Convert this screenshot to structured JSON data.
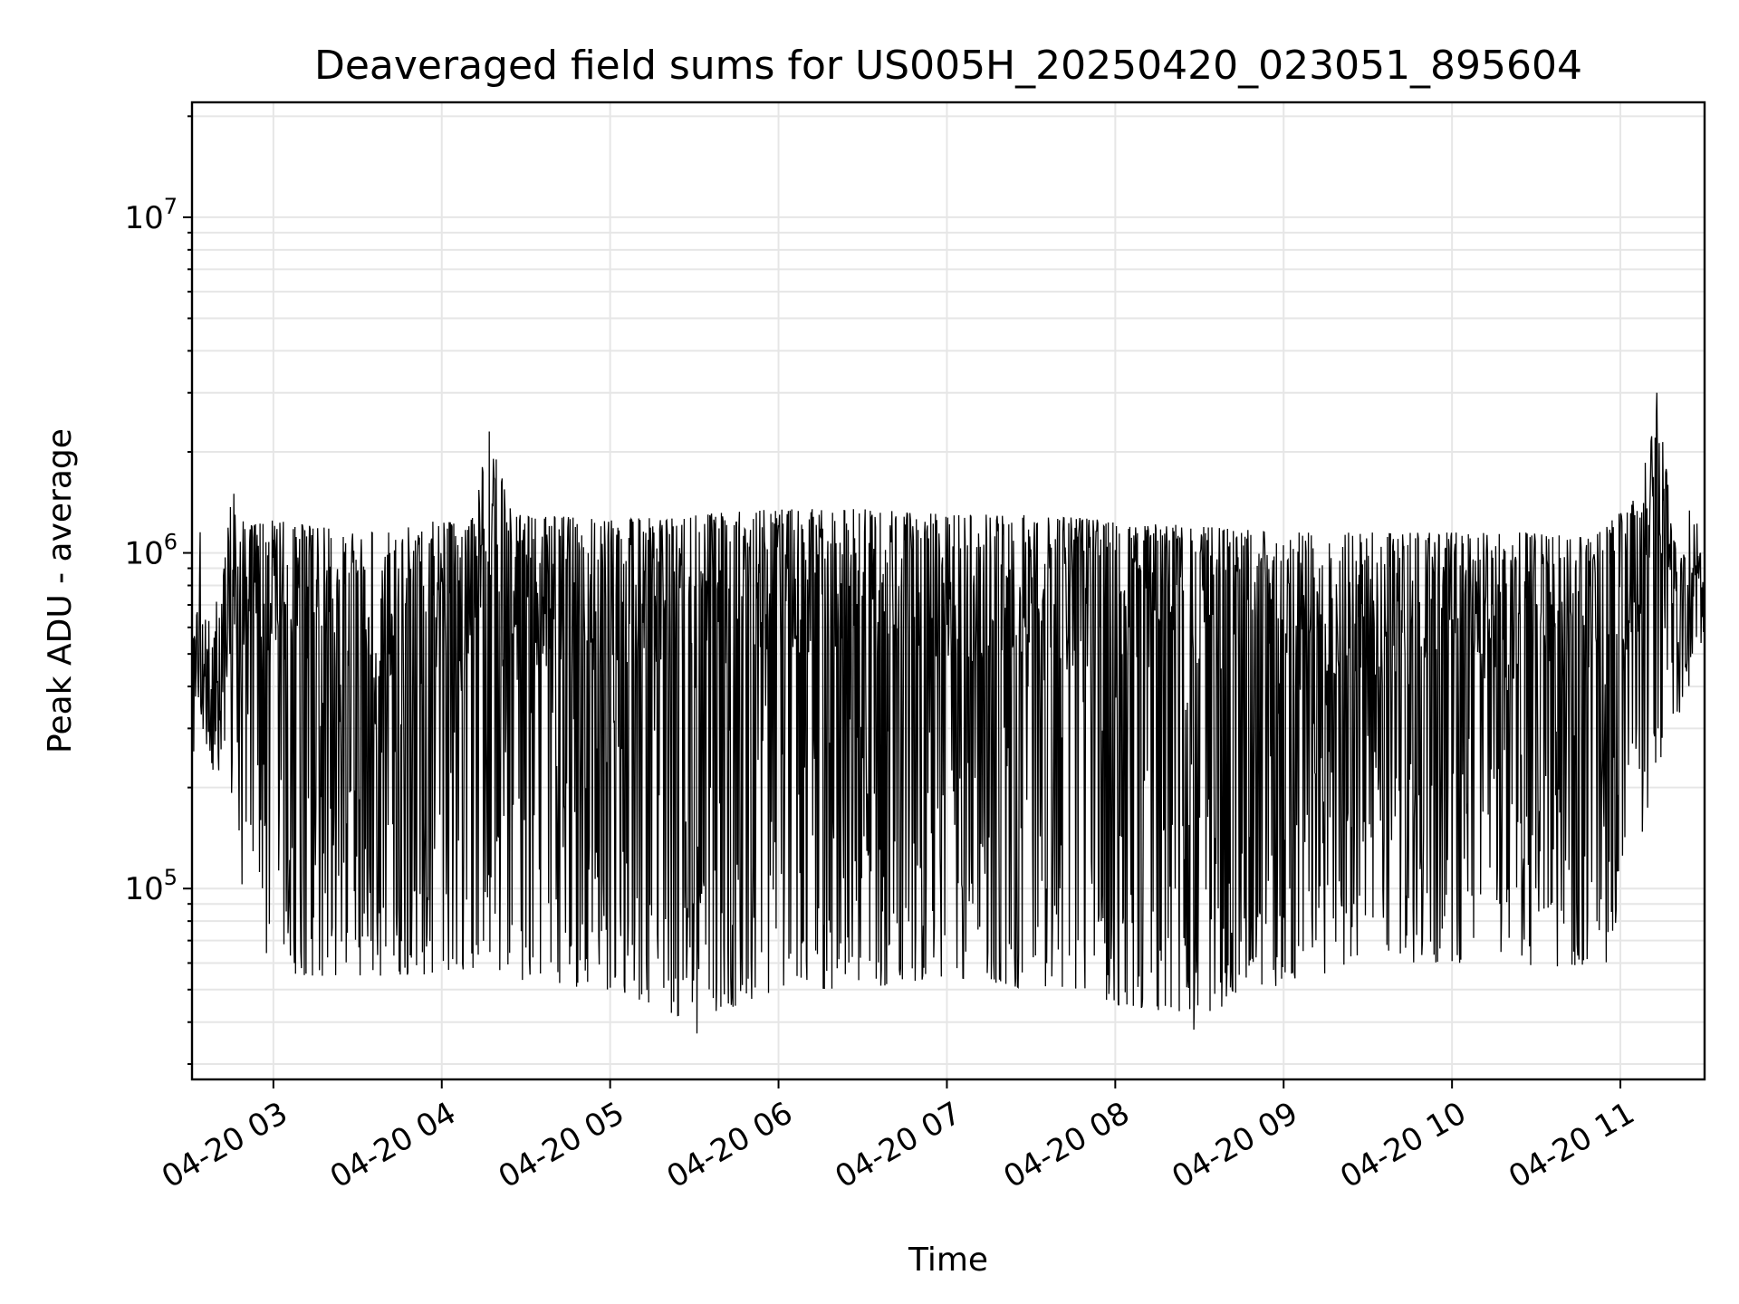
{
  "chart_data": {
    "type": "line",
    "title": "Deaveraged field sums for US005H_20250420_023051_895604",
    "xlabel": "Time",
    "ylabel": "Peak ADU - average",
    "yscale": "log",
    "grid": "on (major and minor)",
    "x_range": [
      "04-20 02:31",
      "04-20 11:30"
    ],
    "ylim": [
      27000,
      22000000
    ],
    "x_ticks": [
      {
        "t": "04-20 03:00",
        "label": "04-20 03"
      },
      {
        "t": "04-20 04:00",
        "label": "04-20 04"
      },
      {
        "t": "04-20 05:00",
        "label": "04-20 05"
      },
      {
        "t": "04-20 06:00",
        "label": "04-20 06"
      },
      {
        "t": "04-20 07:00",
        "label": "04-20 07"
      },
      {
        "t": "04-20 08:00",
        "label": "04-20 08"
      },
      {
        "t": "04-20 09:00",
        "label": "04-20 09"
      },
      {
        "t": "04-20 10:00",
        "label": "04-20 10"
      },
      {
        "t": "04-20 11:00",
        "label": "04-20 11"
      }
    ],
    "y_ticks": [
      {
        "value": 100000,
        "base": "10",
        "exp": "5"
      },
      {
        "value": 1000000,
        "base": "10",
        "exp": "6"
      },
      {
        "value": 10000000,
        "base": "10",
        "exp": "7"
      }
    ],
    "series": [
      {
        "color": "#000000",
        "envelope_upper": [
          [
            "04-20 02:31",
            700000
          ],
          [
            "04-20 02:40",
            600000
          ],
          [
            "04-20 02:45",
            1500000
          ],
          [
            "04-20 02:50",
            1200000
          ],
          [
            "04-20 03:00",
            1250000
          ],
          [
            "04-20 03:15",
            1200000
          ],
          [
            "04-20 03:30",
            1150000
          ],
          [
            "04-20 03:45",
            1200000
          ],
          [
            "04-20 04:00",
            1250000
          ],
          [
            "04-20 04:10",
            1200000
          ],
          [
            "04-20 04:17",
            2300000
          ],
          [
            "04-20 04:25",
            1300000
          ],
          [
            "04-20 04:45",
            1280000
          ],
          [
            "04-20 05:00",
            1250000
          ],
          [
            "04-20 05:30",
            1300000
          ],
          [
            "04-20 06:00",
            1350000
          ],
          [
            "04-20 06:30",
            1350000
          ],
          [
            "04-20 07:00",
            1300000
          ],
          [
            "04-20 07:30",
            1300000
          ],
          [
            "04-20 08:00",
            1250000
          ],
          [
            "04-20 08:30",
            1200000
          ],
          [
            "04-20 09:00",
            1150000
          ],
          [
            "04-20 09:30",
            1150000
          ],
          [
            "04-20 10:00",
            1150000
          ],
          [
            "04-20 10:30",
            1150000
          ],
          [
            "04-20 10:50",
            1100000
          ],
          [
            "04-20 11:07",
            1500000
          ],
          [
            "04-20 11:13",
            3000000
          ],
          [
            "04-20 11:20",
            1000000
          ],
          [
            "04-20 11:30",
            1000000
          ]
        ],
        "envelope_lower": [
          [
            "04-20 02:31",
            400000
          ],
          [
            "04-20 02:40",
            200000
          ],
          [
            "04-20 02:50",
            90000
          ],
          [
            "04-20 03:00",
            55000
          ],
          [
            "04-20 03:15",
            55000
          ],
          [
            "04-20 03:30",
            55000
          ],
          [
            "04-20 03:45",
            55000
          ],
          [
            "04-20 04:00",
            55000
          ],
          [
            "04-20 04:15",
            58000
          ],
          [
            "04-20 04:40",
            50000
          ],
          [
            "04-20 05:00",
            50000
          ],
          [
            "04-20 05:30",
            40000
          ],
          [
            "04-20 06:00",
            50000
          ],
          [
            "04-20 06:30",
            50000
          ],
          [
            "04-20 07:00",
            55000
          ],
          [
            "04-20 07:30",
            50000
          ],
          [
            "04-20 08:00",
            45000
          ],
          [
            "04-20 08:30",
            42000
          ],
          [
            "04-20 09:00",
            52000
          ],
          [
            "04-20 09:30",
            60000
          ],
          [
            "04-20 10:00",
            60000
          ],
          [
            "04-20 10:30",
            58000
          ],
          [
            "04-20 10:55",
            60000
          ],
          [
            "04-20 11:05",
            120000
          ],
          [
            "04-20 11:15",
            250000
          ],
          [
            "04-20 11:30",
            500000
          ]
        ],
        "notable_points": [
          {
            "t": "04-20 02:46",
            "y": 1500000
          },
          {
            "t": "04-20 04:17",
            "y": 2300000
          },
          {
            "t": "04-20 05:31",
            "y": 37000
          },
          {
            "t": "04-20 08:28",
            "y": 38000
          },
          {
            "t": "04-20 11:13",
            "y": 3000000
          }
        ]
      }
    ]
  }
}
